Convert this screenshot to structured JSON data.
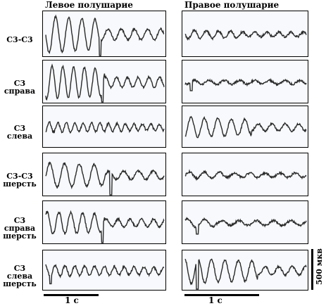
{
  "headers": {
    "left": "Левое полушарие",
    "right": "Правое полушарие"
  },
  "rows": [
    {
      "label_lines": [
        "С3-С3"
      ]
    },
    {
      "label_lines": [
        "С3",
        "справа"
      ]
    },
    {
      "label_lines": [
        "С3",
        "слева"
      ]
    },
    {
      "label_lines": [
        "С3-С3",
        "шерсть"
      ]
    },
    {
      "label_lines": [
        "С3",
        "справа",
        "шерсть"
      ]
    },
    {
      "label_lines": [
        "С3",
        "слева",
        "шерсть"
      ]
    }
  ],
  "scale": {
    "time_label": "1 с",
    "amplitude_label": "500 мкв"
  },
  "colors": {
    "trace": "#2a2a2a",
    "frame": "#000000",
    "background": "#f7f9fc"
  }
}
